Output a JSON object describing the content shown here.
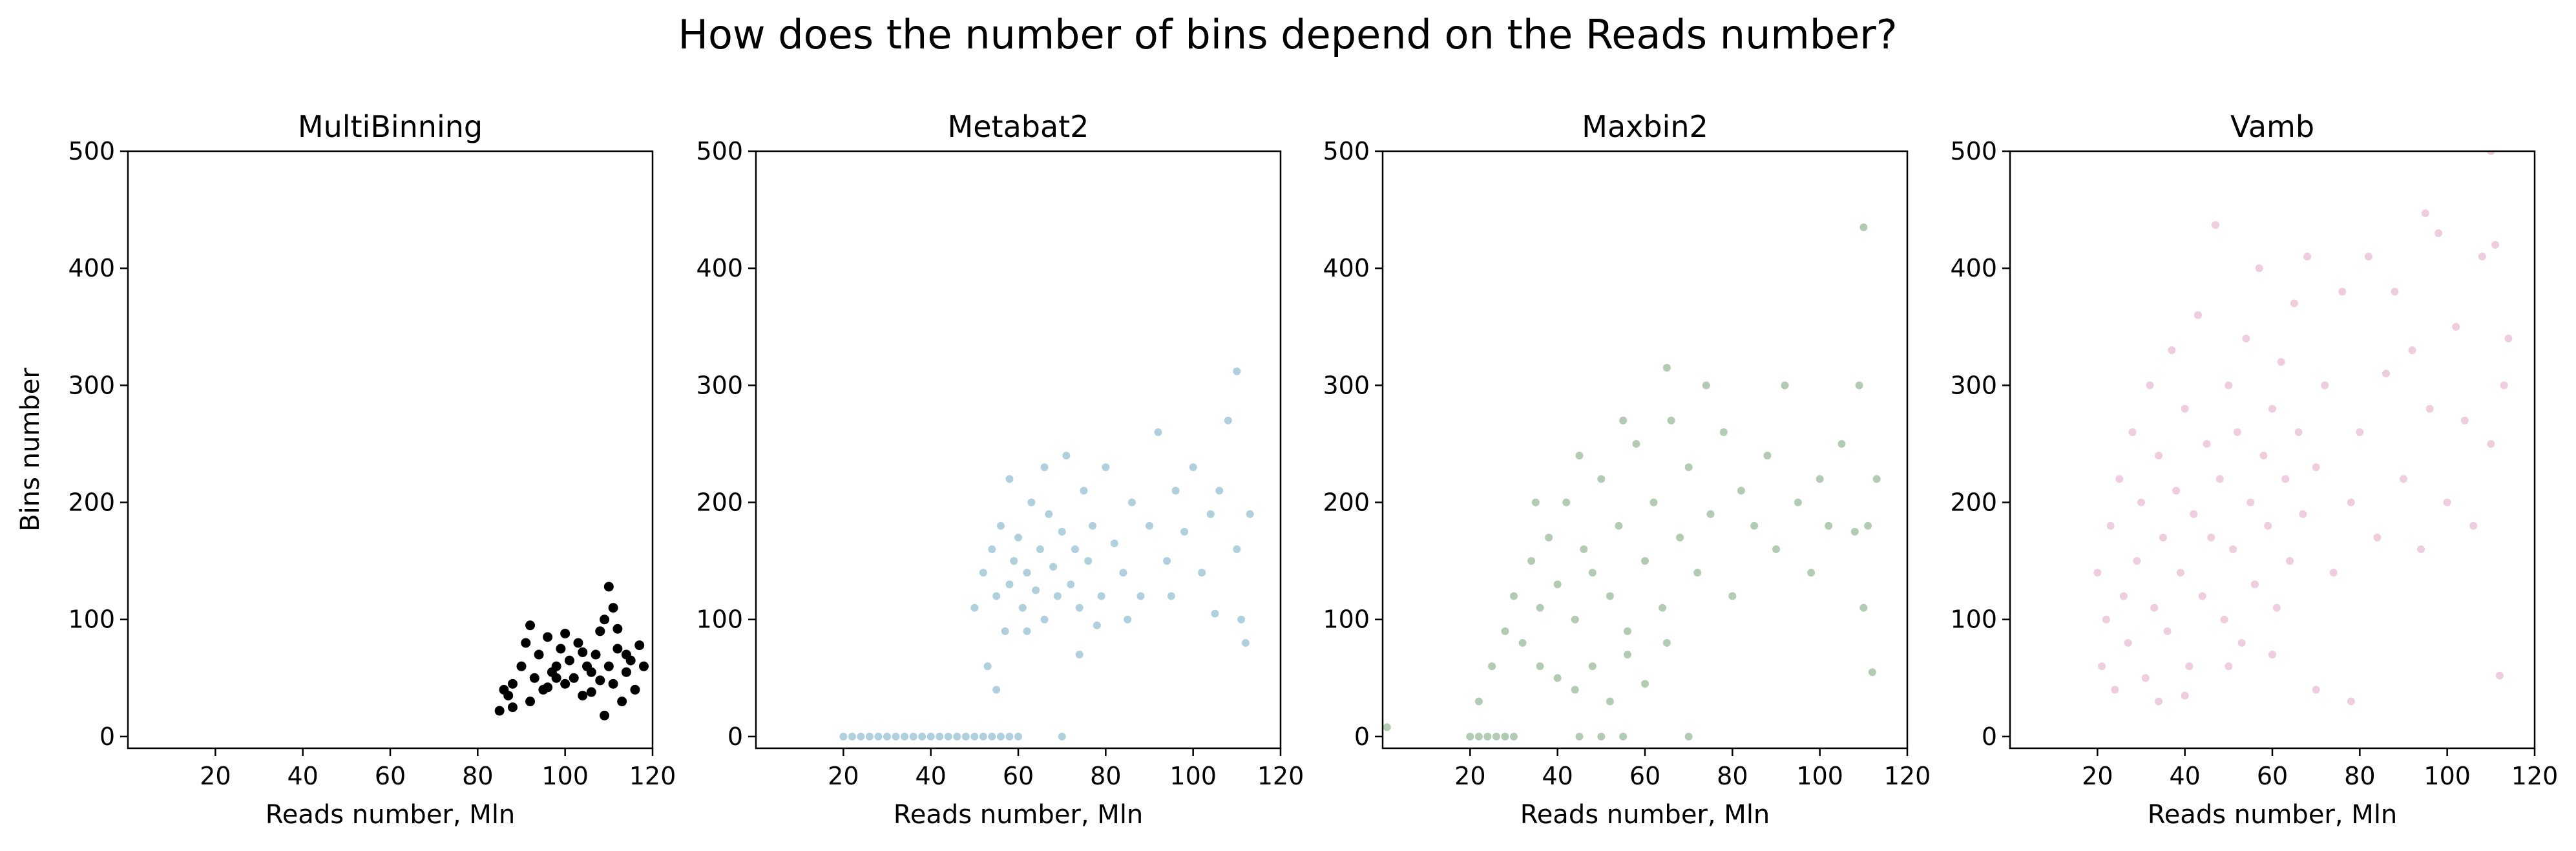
{
  "figure": {
    "title": "How does the number of bins depend on the Reads number?"
  },
  "chart_data": [
    {
      "type": "scatter",
      "title": "MultiBinning",
      "xlabel": "Reads number, Mln",
      "ylabel": "Bins number",
      "xlim": [
        0,
        120
      ],
      "ylim": [
        -10,
        500
      ],
      "xticks": [
        20,
        40,
        60,
        80,
        100,
        120
      ],
      "yticks": [
        0,
        100,
        200,
        300,
        400,
        500
      ],
      "color": "#000000",
      "marker_opacity": 1.0,
      "grid": false,
      "points": [
        [
          85,
          22
        ],
        [
          87,
          35
        ],
        [
          88,
          45
        ],
        [
          90,
          60
        ],
        [
          91,
          80
        ],
        [
          92,
          95
        ],
        [
          93,
          50
        ],
        [
          94,
          70
        ],
        [
          95,
          40
        ],
        [
          96,
          85
        ],
        [
          97,
          55
        ],
        [
          98,
          60
        ],
        [
          99,
          75
        ],
        [
          100,
          45
        ],
        [
          101,
          65
        ],
        [
          102,
          50
        ],
        [
          103,
          80
        ],
        [
          104,
          35
        ],
        [
          105,
          60
        ],
        [
          106,
          55
        ],
        [
          107,
          70
        ],
        [
          108,
          90
        ],
        [
          109,
          100
        ],
        [
          110,
          128
        ],
        [
          110,
          60
        ],
        [
          111,
          45
        ],
        [
          112,
          75
        ],
        [
          113,
          30
        ],
        [
          114,
          55
        ],
        [
          115,
          65
        ],
        [
          116,
          40
        ],
        [
          117,
          78
        ],
        [
          118,
          60
        ],
        [
          88,
          25
        ],
        [
          92,
          30
        ],
        [
          96,
          42
        ],
        [
          100,
          88
        ],
        [
          104,
          72
        ],
        [
          108,
          48
        ],
        [
          112,
          92
        ],
        [
          86,
          40
        ],
        [
          98,
          50
        ],
        [
          106,
          38
        ],
        [
          114,
          70
        ],
        [
          109,
          18
        ],
        [
          111,
          110
        ]
      ]
    },
    {
      "type": "scatter",
      "title": "Metabat2",
      "xlabel": "Reads number, Mln",
      "ylabel": "",
      "xlim": [
        0,
        120
      ],
      "ylim": [
        -10,
        500
      ],
      "xticks": [
        20,
        40,
        60,
        80,
        100,
        120
      ],
      "yticks": [
        0,
        100,
        200,
        300,
        400,
        500
      ],
      "color": "#8fbcd0",
      "marker_opacity": 0.7,
      "grid": false,
      "points": [
        [
          20,
          0
        ],
        [
          22,
          0
        ],
        [
          24,
          0
        ],
        [
          26,
          0
        ],
        [
          28,
          0
        ],
        [
          30,
          0
        ],
        [
          32,
          0
        ],
        [
          34,
          0
        ],
        [
          36,
          0
        ],
        [
          38,
          0
        ],
        [
          40,
          0
        ],
        [
          42,
          0
        ],
        [
          44,
          0
        ],
        [
          46,
          0
        ],
        [
          48,
          0
        ],
        [
          50,
          0
        ],
        [
          52,
          0
        ],
        [
          54,
          0
        ],
        [
          56,
          0
        ],
        [
          58,
          0
        ],
        [
          60,
          0
        ],
        [
          70,
          0
        ],
        [
          50,
          110
        ],
        [
          52,
          140
        ],
        [
          54,
          160
        ],
        [
          55,
          120
        ],
        [
          56,
          180
        ],
        [
          57,
          90
        ],
        [
          58,
          130
        ],
        [
          59,
          150
        ],
        [
          60,
          170
        ],
        [
          61,
          110
        ],
        [
          62,
          140
        ],
        [
          63,
          200
        ],
        [
          64,
          125
        ],
        [
          65,
          160
        ],
        [
          66,
          100
        ],
        [
          67,
          190
        ],
        [
          68,
          145
        ],
        [
          69,
          120
        ],
        [
          70,
          175
        ],
        [
          71,
          240
        ],
        [
          72,
          130
        ],
        [
          73,
          160
        ],
        [
          74,
          110
        ],
        [
          75,
          210
        ],
        [
          76,
          150
        ],
        [
          77,
          180
        ],
        [
          78,
          95
        ],
        [
          80,
          230
        ],
        [
          82,
          165
        ],
        [
          84,
          140
        ],
        [
          86,
          200
        ],
        [
          88,
          120
        ],
        [
          90,
          180
        ],
        [
          92,
          260
        ],
        [
          94,
          150
        ],
        [
          96,
          210
        ],
        [
          98,
          175
        ],
        [
          100,
          230
        ],
        [
          102,
          140
        ],
        [
          104,
          190
        ],
        [
          106,
          210
        ],
        [
          108,
          270
        ],
        [
          110,
          312
        ],
        [
          110,
          160
        ],
        [
          111,
          100
        ],
        [
          112,
          80
        ],
        [
          113,
          190
        ],
        [
          53,
          60
        ],
        [
          55,
          40
        ],
        [
          58,
          220
        ],
        [
          62,
          90
        ],
        [
          66,
          230
        ],
        [
          74,
          70
        ],
        [
          79,
          120
        ],
        [
          85,
          100
        ],
        [
          95,
          120
        ],
        [
          105,
          105
        ]
      ]
    },
    {
      "type": "scatter",
      "title": "Maxbin2",
      "xlabel": "Reads number, Mln",
      "ylabel": "",
      "xlim": [
        0,
        120
      ],
      "ylim": [
        -10,
        500
      ],
      "xticks": [
        20,
        40,
        60,
        80,
        100,
        120
      ],
      "yticks": [
        0,
        100,
        200,
        300,
        400,
        500
      ],
      "color": "#93b593",
      "marker_opacity": 0.7,
      "grid": false,
      "points": [
        [
          20,
          0
        ],
        [
          22,
          0
        ],
        [
          24,
          0
        ],
        [
          26,
          0
        ],
        [
          28,
          0
        ],
        [
          30,
          0
        ],
        [
          45,
          0
        ],
        [
          50,
          0
        ],
        [
          55,
          0
        ],
        [
          70,
          0
        ],
        [
          1,
          8
        ],
        [
          22,
          30
        ],
        [
          25,
          60
        ],
        [
          28,
          90
        ],
        [
          30,
          120
        ],
        [
          32,
          80
        ],
        [
          34,
          150
        ],
        [
          36,
          110
        ],
        [
          38,
          170
        ],
        [
          40,
          130
        ],
        [
          42,
          200
        ],
        [
          44,
          100
        ],
        [
          46,
          160
        ],
        [
          48,
          140
        ],
        [
          50,
          220
        ],
        [
          52,
          120
        ],
        [
          54,
          180
        ],
        [
          56,
          90
        ],
        [
          58,
          250
        ],
        [
          60,
          150
        ],
        [
          62,
          200
        ],
        [
          64,
          110
        ],
        [
          66,
          270
        ],
        [
          68,
          170
        ],
        [
          70,
          230
        ],
        [
          72,
          140
        ],
        [
          74,
          300
        ],
        [
          75,
          190
        ],
        [
          78,
          260
        ],
        [
          80,
          120
        ],
        [
          82,
          210
        ],
        [
          85,
          180
        ],
        [
          88,
          240
        ],
        [
          90,
          160
        ],
        [
          92,
          300
        ],
        [
          95,
          200
        ],
        [
          98,
          140
        ],
        [
          100,
          220
        ],
        [
          102,
          180
        ],
        [
          105,
          250
        ],
        [
          108,
          175
        ],
        [
          109,
          300
        ],
        [
          110,
          110
        ],
        [
          110,
          435
        ],
        [
          111,
          180
        ],
        [
          112,
          55
        ],
        [
          113,
          220
        ],
        [
          36,
          60
        ],
        [
          40,
          50
        ],
        [
          44,
          40
        ],
        [
          48,
          60
        ],
        [
          52,
          30
        ],
        [
          56,
          70
        ],
        [
          60,
          45
        ],
        [
          65,
          80
        ],
        [
          35,
          200
        ],
        [
          45,
          240
        ],
        [
          55,
          270
        ],
        [
          65,
          315
        ]
      ]
    },
    {
      "type": "scatter",
      "title": "Vamb",
      "xlabel": "Reads number, Mln",
      "ylabel": "",
      "xlim": [
        0,
        120
      ],
      "ylim": [
        -10,
        500
      ],
      "xticks": [
        20,
        40,
        60,
        80,
        100,
        120
      ],
      "yticks": [
        0,
        100,
        200,
        300,
        400,
        500
      ],
      "color": "#e6b8d0",
      "marker_opacity": 0.7,
      "grid": false,
      "points": [
        [
          20,
          140
        ],
        [
          21,
          60
        ],
        [
          22,
          100
        ],
        [
          23,
          180
        ],
        [
          24,
          40
        ],
        [
          25,
          220
        ],
        [
          26,
          120
        ],
        [
          27,
          80
        ],
        [
          28,
          260
        ],
        [
          29,
          150
        ],
        [
          30,
          200
        ],
        [
          31,
          50
        ],
        [
          32,
          300
        ],
        [
          33,
          110
        ],
        [
          34,
          240
        ],
        [
          35,
          170
        ],
        [
          36,
          90
        ],
        [
          37,
          330
        ],
        [
          38,
          210
        ],
        [
          39,
          140
        ],
        [
          40,
          280
        ],
        [
          41,
          60
        ],
        [
          42,
          190
        ],
        [
          43,
          360
        ],
        [
          44,
          120
        ],
        [
          45,
          250
        ],
        [
          46,
          170
        ],
        [
          47,
          437
        ],
        [
          48,
          220
        ],
        [
          49,
          100
        ],
        [
          50,
          300
        ],
        [
          51,
          160
        ],
        [
          52,
          260
        ],
        [
          53,
          80
        ],
        [
          54,
          340
        ],
        [
          55,
          200
        ],
        [
          56,
          130
        ],
        [
          57,
          400
        ],
        [
          58,
          240
        ],
        [
          59,
          180
        ],
        [
          60,
          280
        ],
        [
          61,
          110
        ],
        [
          62,
          320
        ],
        [
          63,
          220
        ],
        [
          64,
          150
        ],
        [
          65,
          370
        ],
        [
          66,
          260
        ],
        [
          67,
          190
        ],
        [
          68,
          410
        ],
        [
          70,
          230
        ],
        [
          72,
          300
        ],
        [
          74,
          140
        ],
        [
          76,
          380
        ],
        [
          78,
          200
        ],
        [
          80,
          260
        ],
        [
          82,
          410
        ],
        [
          84,
          170
        ],
        [
          86,
          310
        ],
        [
          88,
          380
        ],
        [
          90,
          220
        ],
        [
          92,
          330
        ],
        [
          94,
          160
        ],
        [
          95,
          447
        ],
        [
          96,
          280
        ],
        [
          98,
          430
        ],
        [
          100,
          200
        ],
        [
          102,
          350
        ],
        [
          104,
          270
        ],
        [
          106,
          180
        ],
        [
          108,
          410
        ],
        [
          110,
          500
        ],
        [
          110,
          250
        ],
        [
          111,
          420
        ],
        [
          112,
          52
        ],
        [
          113,
          300
        ],
        [
          114,
          340
        ],
        [
          34,
          30
        ],
        [
          40,
          35
        ],
        [
          50,
          60
        ],
        [
          60,
          70
        ],
        [
          70,
          40
        ],
        [
          78,
          30
        ]
      ]
    }
  ]
}
